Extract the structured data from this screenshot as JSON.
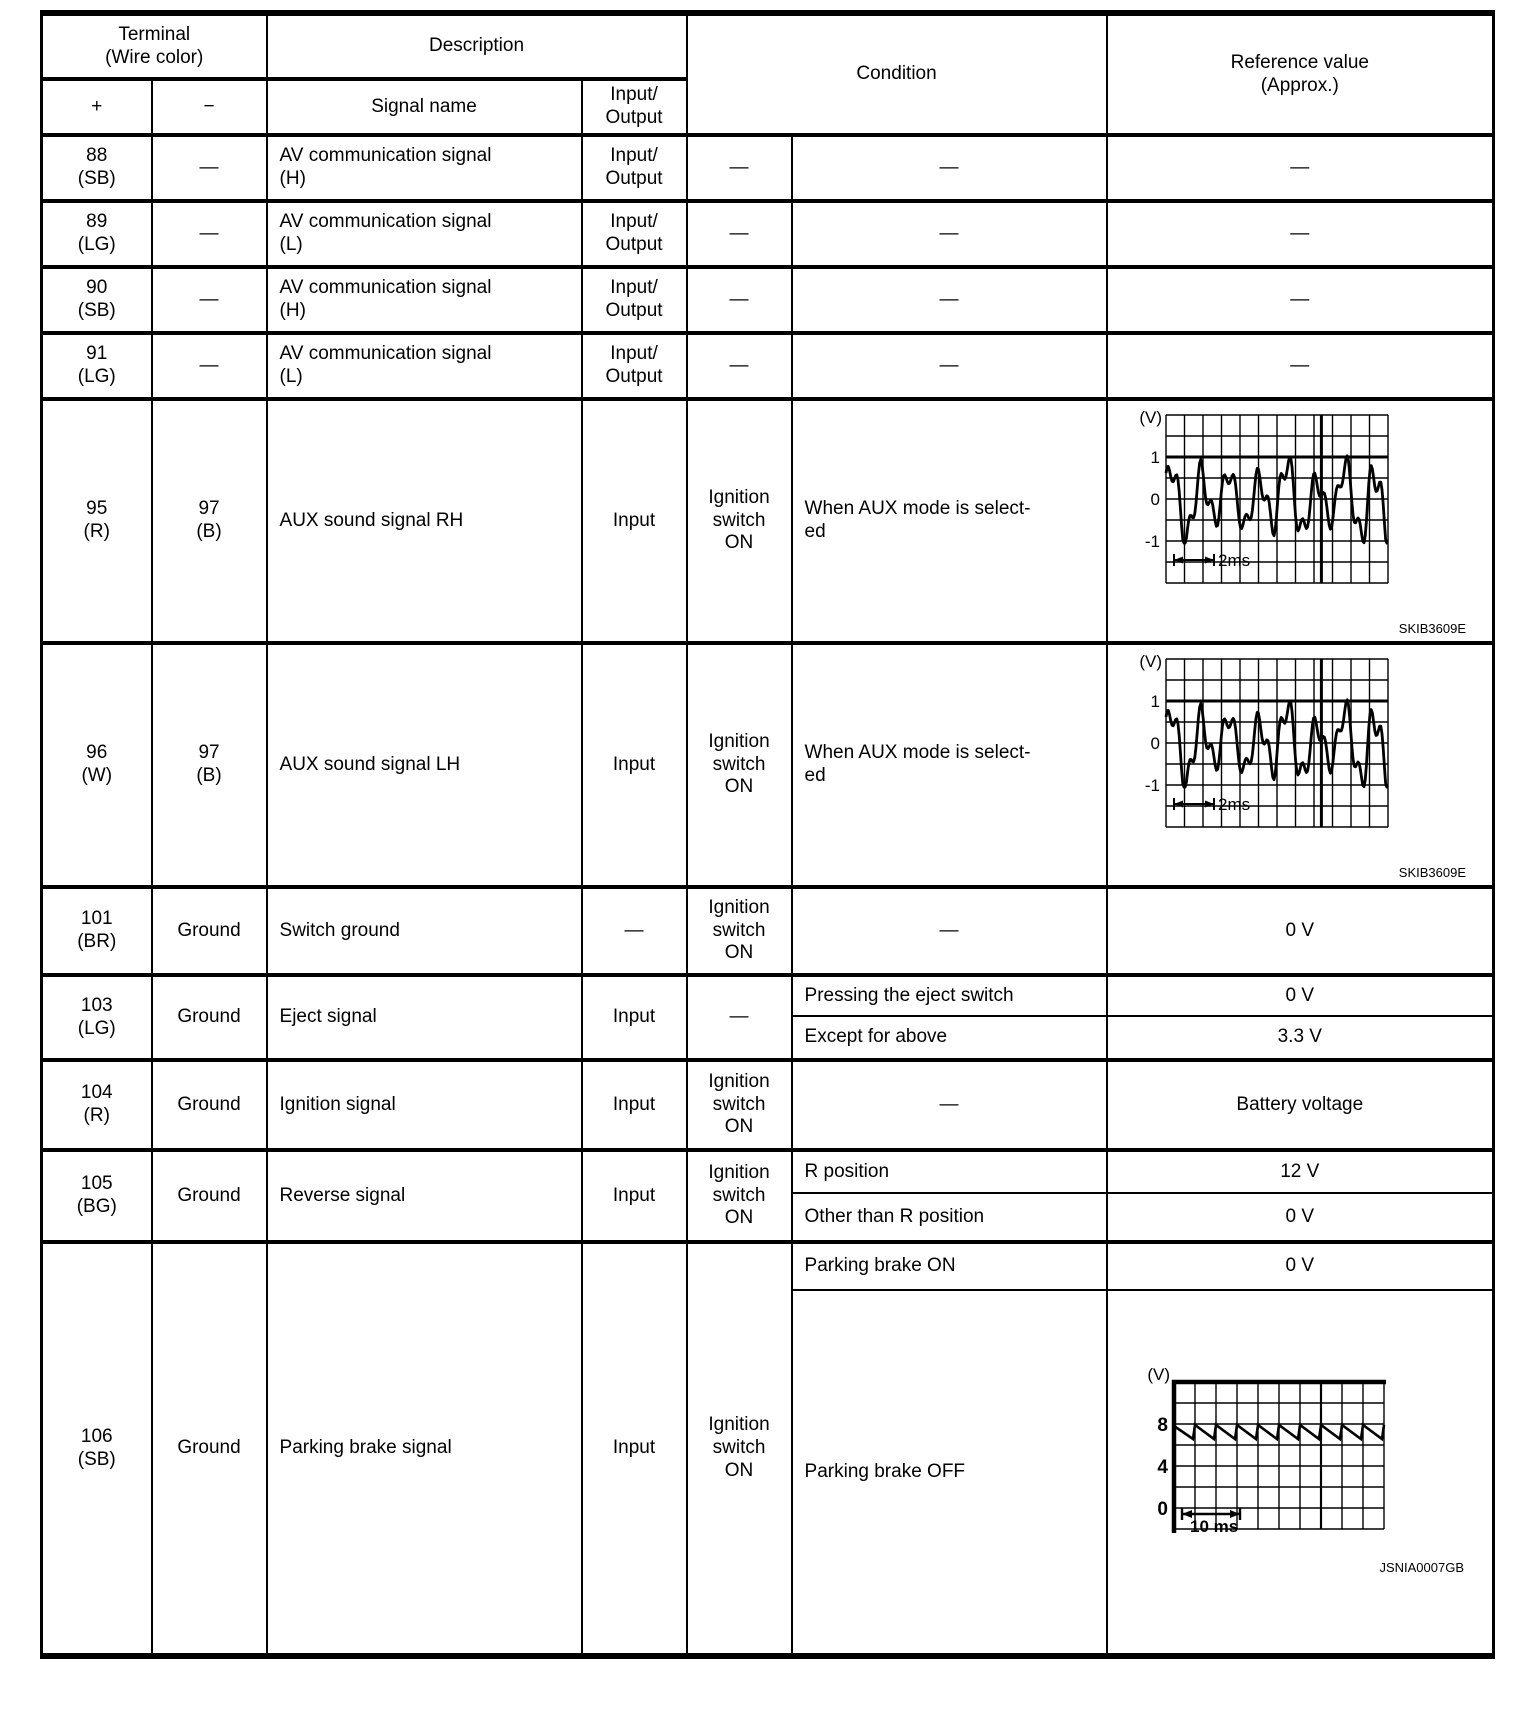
{
  "page": {
    "background": "#ffffff",
    "ink": "#000000"
  },
  "header": {
    "terminal": [
      "Terminal",
      "(Wire color)"
    ],
    "plus": "+",
    "minus": "−",
    "description": "Description",
    "signal_name": "Signal name",
    "io": [
      "Input/",
      "Output"
    ],
    "condition": "Condition",
    "reference": [
      "Reference value",
      "(Approx.)"
    ]
  },
  "rows": [
    {
      "plus": [
        "88",
        "(SB)"
      ],
      "minus": "—",
      "name": [
        "AV communication signal",
        "(H)"
      ],
      "io": [
        "Input/",
        "Output"
      ],
      "cond_a": "—",
      "cond_b": "—",
      "ref": "—"
    },
    {
      "plus": [
        "89",
        "(LG)"
      ],
      "minus": "—",
      "name": [
        "AV communication signal",
        "(L)"
      ],
      "io": [
        "Input/",
        "Output"
      ],
      "cond_a": "—",
      "cond_b": "—",
      "ref": "—"
    },
    {
      "plus": [
        "90",
        "(SB)"
      ],
      "minus": "—",
      "name": [
        "AV communication signal",
        "(H)"
      ],
      "io": [
        "Input/",
        "Output"
      ],
      "cond_a": "—",
      "cond_b": "—",
      "ref": "—"
    },
    {
      "plus": [
        "91",
        "(LG)"
      ],
      "minus": "—",
      "name": [
        "AV communication signal",
        "(L)"
      ],
      "io": [
        "Input/",
        "Output"
      ],
      "cond_a": "—",
      "cond_b": "—",
      "ref": "—"
    },
    {
      "plus": [
        "95",
        "(R)"
      ],
      "minus": [
        "97",
        "(B)"
      ],
      "name": "AUX sound signal RH",
      "io": "Input",
      "cond_a": [
        "Ignition",
        "switch",
        "ON"
      ],
      "cond_b": [
        "When AUX mode is select-",
        "ed"
      ],
      "ref_figure": "aux"
    },
    {
      "plus": [
        "96",
        "(W)"
      ],
      "minus": [
        "97",
        "(B)"
      ],
      "name": "AUX sound signal LH",
      "io": "Input",
      "cond_a": [
        "Ignition",
        "switch",
        "ON"
      ],
      "cond_b": [
        "When AUX mode is select-",
        "ed"
      ],
      "ref_figure": "aux"
    },
    {
      "plus": [
        "101",
        "(BR)"
      ],
      "minus": "Ground",
      "name": "Switch ground",
      "io": "—",
      "cond_a": [
        "Ignition",
        "switch",
        "ON"
      ],
      "cond_b": "—",
      "ref": "0 V"
    },
    {
      "plus": [
        "103",
        "(LG)"
      ],
      "minus": "Ground",
      "name": "Eject signal",
      "io": "Input",
      "cond_a": "—",
      "sub": [
        {
          "cond": "Pressing the eject switch",
          "ref": "0 V"
        },
        {
          "cond": "Except for above",
          "ref": "3.3 V"
        }
      ]
    },
    {
      "plus": [
        "104",
        "(R)"
      ],
      "minus": "Ground",
      "name": "Ignition signal",
      "io": "Input",
      "cond_a": [
        "Ignition",
        "switch",
        "ON"
      ],
      "cond_b": "—",
      "ref": "Battery voltage"
    },
    {
      "plus": [
        "105",
        "(BG)"
      ],
      "minus": "Ground",
      "name": "Reverse signal",
      "io": "Input",
      "cond_a": [
        "Ignition",
        "switch",
        "ON"
      ],
      "sub": [
        {
          "cond": "R position",
          "ref": "12 V"
        },
        {
          "cond": "Other than R position",
          "ref": "0 V"
        }
      ]
    },
    {
      "plus": [
        "106",
        "(SB)"
      ],
      "minus": "Ground",
      "name": "Parking brake signal",
      "io": "Input",
      "cond_a": [
        "Ignition",
        "switch",
        "ON"
      ],
      "sub": [
        {
          "cond": "Parking brake ON",
          "ref": "0 V"
        },
        {
          "cond": "Parking brake OFF",
          "ref_figure": "parking"
        }
      ]
    }
  ],
  "figures": {
    "aux": {
      "type": "oscilloscope-waveform",
      "unit": "(V)",
      "yticks": [
        "1",
        "0",
        "-1"
      ],
      "time_label": "2ms",
      "caption": "SKIB3609E",
      "description": "audio-like AC waveform, approx -1 V to +1 V"
    },
    "parking": {
      "type": "oscilloscope-waveform",
      "unit": "(V)",
      "yticks": [
        "8",
        "4",
        "0"
      ],
      "time_label": "10 ms",
      "caption": "JSNIA0007GB",
      "description": "sawtooth pulse train riding just below 8 V"
    }
  }
}
